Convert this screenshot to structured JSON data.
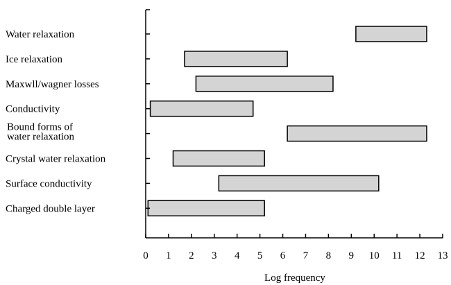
{
  "chart_data": {
    "type": "bar",
    "orientation": "horizontal-range",
    "xlabel": "Log frequency",
    "xlim": [
      0,
      13
    ],
    "xticks": [
      "0",
      "1",
      "2",
      "3",
      "4",
      "5",
      "6",
      "7",
      "8",
      "9",
      "10",
      "11",
      "12",
      "13"
    ],
    "categories": [
      [
        "Water relaxation"
      ],
      [
        "Ice relaxation"
      ],
      [
        "Maxwll/wagner losses"
      ],
      [
        "Conductivity"
      ],
      [
        "Bound forms of",
        "water relaxation"
      ],
      [
        "Crystal water relaxation"
      ],
      [
        "Surface conductivity"
      ],
      [
        "Charged double layer"
      ]
    ],
    "ranges": [
      [
        9.2,
        12.3
      ],
      [
        1.7,
        6.2
      ],
      [
        2.2,
        8.2
      ],
      [
        0.2,
        4.7
      ],
      [
        6.2,
        12.3
      ],
      [
        1.2,
        5.2
      ],
      [
        3.2,
        10.2
      ],
      [
        0.1,
        5.2
      ]
    ],
    "grid": false,
    "colors": {
      "bar_fill": "#d4d4d4",
      "bar_stroke": "#000000"
    }
  }
}
